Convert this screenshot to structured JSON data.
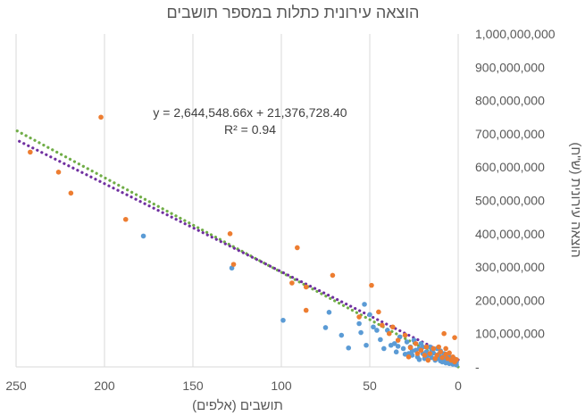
{
  "chart_data": {
    "type": "scatter",
    "title": "הוצאה עירונית כתלות במספר תושבים",
    "xlabel": "תושבים (אלפים)",
    "ylabel": "הוצאה עירונית (ש\"ח)",
    "xlim": [
      0,
      250
    ],
    "ylim": [
      0,
      1000000000
    ],
    "x_reversed": true,
    "y_axis_side": "right",
    "grid": {
      "vertical": true,
      "horizontal": false
    },
    "x_ticks": [
      "250",
      "200",
      "150",
      "100",
      "50",
      "0"
    ],
    "y_ticks": [
      "-",
      "100,000,000",
      "200,000,000",
      "300,000,000",
      "400,000,000",
      "500,000,000",
      "600,000,000",
      "700,000,000",
      "800,000,000",
      "900,000,000",
      "1,000,000,000"
    ],
    "trendline": {
      "equation": "y = 2,644,548.66x + 21,376,728.40",
      "r2": "R² = 0.94",
      "lines": [
        {
          "color": "#70ad47",
          "slope": 2842000,
          "intercept": 0
        },
        {
          "color": "#7030a0",
          "slope": 2644548.66,
          "intercept": 21376728.4
        }
      ]
    },
    "colors": {
      "series1": "#5b9bd5",
      "series2": "#ed7d31",
      "grid": "#d9d9d9"
    },
    "series": [
      {
        "color": "#5b9bd5",
        "points": [
          [
            178,
            393000000
          ],
          [
            128,
            297000000
          ],
          [
            99,
            140000000
          ],
          [
            73,
            164000000
          ],
          [
            75,
            118000000
          ],
          [
            66,
            95000000
          ],
          [
            62,
            57000000
          ],
          [
            56,
            130000000
          ],
          [
            55,
            103000000
          ],
          [
            53,
            188000000
          ],
          [
            52,
            65000000
          ],
          [
            50,
            157000000
          ],
          [
            48,
            120000000
          ],
          [
            46,
            110000000
          ],
          [
            44,
            82000000
          ],
          [
            42,
            55000000
          ],
          [
            40,
            110000000
          ],
          [
            38,
            65000000
          ],
          [
            36,
            70000000
          ],
          [
            35,
            45000000
          ],
          [
            33,
            90000000
          ],
          [
            31,
            55000000
          ],
          [
            29,
            75000000
          ],
          [
            28,
            40000000
          ],
          [
            27,
            60000000
          ],
          [
            26,
            35000000
          ],
          [
            25,
            80000000
          ],
          [
            24,
            50000000
          ],
          [
            23,
            30000000
          ],
          [
            22,
            55000000
          ],
          [
            21,
            70000000
          ],
          [
            20,
            40000000
          ],
          [
            19,
            25000000
          ],
          [
            18,
            45000000
          ],
          [
            17,
            35000000
          ],
          [
            16,
            60000000
          ],
          [
            15,
            28000000
          ],
          [
            14,
            42000000
          ],
          [
            13,
            20000000
          ],
          [
            12,
            35000000
          ],
          [
            11,
            25000000
          ],
          [
            10,
            48000000
          ],
          [
            10,
            18000000
          ],
          [
            9,
            30000000
          ],
          [
            9,
            15000000
          ],
          [
            8,
            22000000
          ],
          [
            8,
            40000000
          ],
          [
            7,
            12000000
          ],
          [
            7,
            26000000
          ],
          [
            6,
            18000000
          ],
          [
            6,
            33000000
          ],
          [
            5,
            10000000
          ],
          [
            5,
            22000000
          ],
          [
            4,
            15000000
          ],
          [
            4,
            28000000
          ],
          [
            3,
            8000000
          ],
          [
            3,
            18000000
          ],
          [
            2,
            12000000
          ],
          [
            2,
            24000000
          ],
          [
            1,
            6000000
          ],
          [
            1,
            14000000
          ],
          [
            15,
            50000000
          ],
          [
            12,
            55000000
          ],
          [
            20,
            60000000
          ],
          [
            26,
            48000000
          ],
          [
            30,
            38000000
          ],
          [
            34,
            62000000
          ],
          [
            18,
            30000000
          ],
          [
            22,
            22000000
          ],
          [
            11,
            38000000
          ]
        ]
      },
      {
        "color": "#ed7d31",
        "points": [
          [
            242,
            645000000
          ],
          [
            226,
            585000000
          ],
          [
            219,
            522000000
          ],
          [
            202,
            750000000
          ],
          [
            188,
            443000000
          ],
          [
            129,
            400000000
          ],
          [
            127,
            308000000
          ],
          [
            91,
            358000000
          ],
          [
            94,
            252000000
          ],
          [
            86,
            240000000
          ],
          [
            86,
            170000000
          ],
          [
            71,
            275000000
          ],
          [
            56,
            150000000
          ],
          [
            49,
            245000000
          ],
          [
            45,
            165000000
          ],
          [
            43,
            125000000
          ],
          [
            39,
            100000000
          ],
          [
            37,
            120000000
          ],
          [
            34,
            80000000
          ],
          [
            30,
            95000000
          ],
          [
            27,
            58000000
          ],
          [
            24,
            70000000
          ],
          [
            21,
            50000000
          ],
          [
            18,
            60000000
          ],
          [
            16,
            40000000
          ],
          [
            14,
            55000000
          ],
          [
            12,
            35000000
          ],
          [
            10,
            45000000
          ],
          [
            9,
            28000000
          ],
          [
            8,
            100000000
          ],
          [
            7,
            38000000
          ],
          [
            6,
            25000000
          ],
          [
            5,
            42000000
          ],
          [
            4,
            20000000
          ],
          [
            3,
            30000000
          ],
          [
            2,
            88000000
          ],
          [
            2,
            15000000
          ],
          [
            1,
            22000000
          ],
          [
            19,
            35000000
          ],
          [
            13,
            25000000
          ],
          [
            11,
            60000000
          ],
          [
            23,
            40000000
          ],
          [
            28,
            30000000
          ],
          [
            17,
            20000000
          ],
          [
            7,
            55000000
          ]
        ]
      }
    ]
  }
}
